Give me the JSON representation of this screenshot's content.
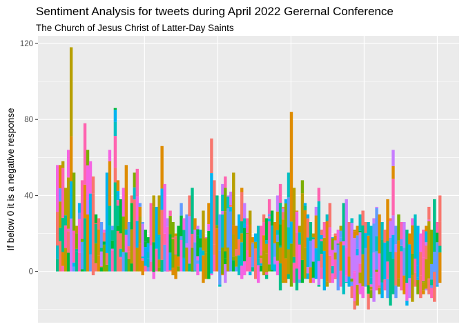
{
  "chart_data": {
    "type": "bar",
    "stacked": true,
    "title": "Sentiment Analysis for tweets during April 2022 Gerernal Conference",
    "subtitle": "The Church of Jesus Christ of Latter-Day Saints",
    "xlabel": "",
    "ylabel": "If below 0 it is a negative response",
    "ylim": [
      -27,
      124
    ],
    "yticks": [
      0,
      40,
      80,
      120
    ],
    "grid": true,
    "legend": "none",
    "palette": [
      "#F8766D",
      "#DE8C00",
      "#B79F00",
      "#7CAE00",
      "#00BA38",
      "#00C08B",
      "#00BFC4",
      "#00B4F0",
      "#619CFF",
      "#C77CFF",
      "#F564E3",
      "#FF64B0"
    ],
    "background": "#EBEBEB",
    "gridline_color": "#FFFFFF",
    "n_bars": 140,
    "bar_tops": [
      56,
      56,
      58,
      44,
      64,
      118,
      52,
      24,
      36,
      48,
      78,
      64,
      58,
      50,
      30,
      28,
      26,
      22,
      52,
      64,
      24,
      86,
      48,
      38,
      44,
      56,
      26,
      40,
      52,
      54,
      36,
      26,
      22,
      18,
      36,
      40,
      34,
      40,
      66,
      46,
      28,
      32,
      26,
      20,
      24,
      36,
      28,
      30,
      40,
      44,
      28,
      24,
      22,
      32,
      18,
      36,
      70,
      48,
      40,
      30,
      46,
      50,
      40,
      42,
      52,
      24,
      30,
      44,
      36,
      28,
      32,
      18,
      20,
      24,
      24,
      30,
      28,
      38,
      32,
      26,
      40,
      46,
      34,
      38,
      52,
      84,
      44,
      32,
      24,
      48,
      36,
      30,
      26,
      20,
      34,
      44,
      22,
      26,
      30,
      36,
      18,
      20,
      22,
      24,
      36,
      38,
      26,
      28,
      22,
      24,
      30,
      32,
      26,
      26,
      24,
      28,
      34,
      30,
      26,
      22,
      38,
      28,
      64,
      24,
      30,
      26,
      26,
      22,
      20,
      28,
      30,
      24,
      20,
      22,
      24,
      34,
      22,
      38,
      26,
      40
    ],
    "bar_bottoms": [
      0,
      0,
      0,
      0,
      0,
      0,
      0,
      0,
      0,
      0,
      0,
      0,
      0,
      -2,
      0,
      0,
      0,
      0,
      0,
      0,
      0,
      0,
      0,
      0,
      0,
      0,
      0,
      0,
      0,
      0,
      0,
      -2,
      0,
      0,
      0,
      -4,
      0,
      0,
      0,
      0,
      0,
      0,
      -2,
      -4,
      0,
      0,
      0,
      0,
      0,
      0,
      0,
      -2,
      0,
      -6,
      -4,
      -4,
      -2,
      0,
      0,
      -8,
      -2,
      -6,
      0,
      0,
      0,
      0,
      -2,
      -4,
      -2,
      0,
      -2,
      0,
      -4,
      -6,
      0,
      -2,
      -4,
      0,
      0,
      0,
      -2,
      -10,
      -6,
      -6,
      -4,
      -8,
      -6,
      -10,
      -6,
      -6,
      -4,
      -4,
      -6,
      -6,
      -4,
      -8,
      -4,
      -10,
      -8,
      -6,
      -6,
      -4,
      -10,
      -8,
      -12,
      -6,
      -8,
      -14,
      -20,
      -18,
      -12,
      -14,
      -8,
      -20,
      -14,
      -16,
      -10,
      -12,
      -14,
      -10,
      -14,
      -18,
      -12,
      -14,
      -8,
      -10,
      -12,
      -18,
      -14,
      -16,
      -8,
      -12,
      -14,
      -12,
      -10,
      -12,
      -14,
      -16,
      -8,
      -6
    ]
  }
}
